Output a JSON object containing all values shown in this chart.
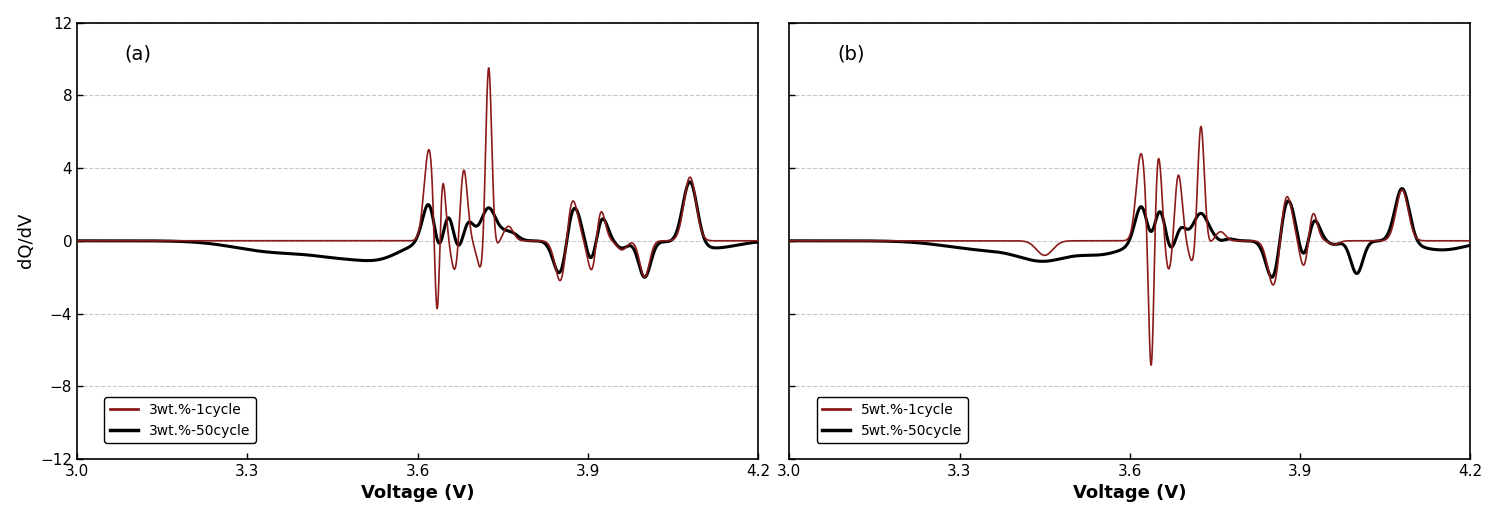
{
  "title_a": "(a)",
  "title_b": "(b)",
  "xlabel": "Voltage (V)",
  "ylabel": "dQ/dV",
  "xlim": [
    3.0,
    4.2
  ],
  "ylim": [
    -12.0,
    12.0
  ],
  "yticks": [
    -12.0,
    -8.0,
    -4.0,
    0.0,
    4.0,
    8.0,
    12.0
  ],
  "xticks": [
    3.0,
    3.3,
    3.6,
    3.9,
    4.2
  ],
  "legend_a_cycle1": "3wt.%-1cycle",
  "legend_a_cycle50": "3wt.%-50cycle",
  "legend_b_cycle1": "5wt.%-1cycle",
  "legend_b_cycle50": "5wt.%-50cycle",
  "color_cycle1": "#8B1A1A",
  "color_cycle50": "#000000",
  "background_color": "#ffffff",
  "grid_color": "#bbbbbb",
  "linewidth_cycle1": 1.2,
  "linewidth_cycle50": 2.2
}
